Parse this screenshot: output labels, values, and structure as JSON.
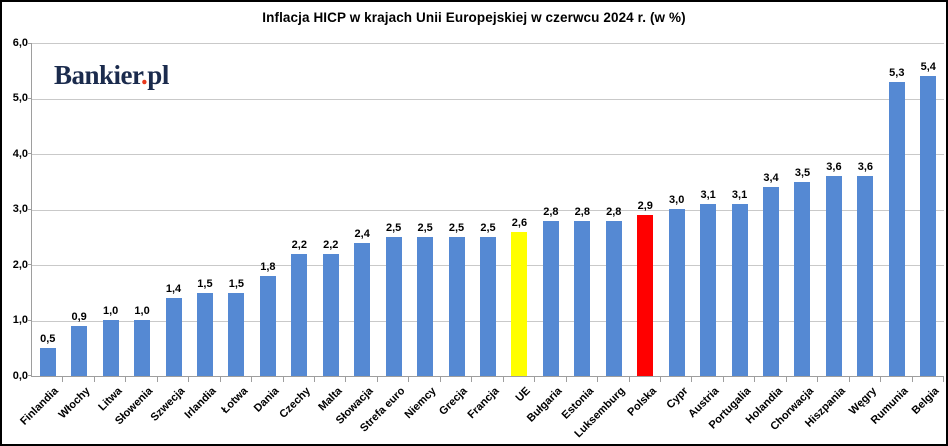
{
  "logo": {
    "main": "Bankier",
    "dot": ".",
    "suffix": "pl"
  },
  "chart_data": {
    "type": "bar",
    "title": "Inflacja HICP w krajach Unii Europejskiej w czerwcu 2024 r. (w %)",
    "categories": [
      "Finlandia",
      "Włochy",
      "Litwa",
      "Słowenia",
      "Szwecja",
      "Irlandia",
      "Łotwa",
      "Dania",
      "Czechy",
      "Malta",
      "Słowacja",
      "Strefa euro",
      "Niemcy",
      "Grecja",
      "Francja",
      "UE",
      "Bułgaria",
      "Estonia",
      "Luksemburg",
      "Polska",
      "Cypr",
      "Austria",
      "Portugalia",
      "Holandia",
      "Chorwacja",
      "Hiszpania",
      "Węgry",
      "Rumunia",
      "Belgia"
    ],
    "values": [
      0.5,
      0.9,
      1.0,
      1.0,
      1.4,
      1.5,
      1.5,
      1.8,
      2.2,
      2.2,
      2.4,
      2.5,
      2.5,
      2.5,
      2.5,
      2.6,
      2.8,
      2.8,
      2.8,
      2.9,
      3.0,
      3.1,
      3.1,
      3.4,
      3.5,
      3.6,
      3.6,
      5.3,
      5.4
    ],
    "value_labels": [
      "0,5",
      "0,9",
      "1,0",
      "1,0",
      "1,4",
      "1,5",
      "1,5",
      "1,8",
      "2,2",
      "2,2",
      "2,4",
      "2,5",
      "2,5",
      "2,5",
      "2,5",
      "2,6",
      "2,8",
      "2,8",
      "2,8",
      "2,9",
      "3,0",
      "3,1",
      "3,1",
      "3,4",
      "3,5",
      "3,6",
      "3,6",
      "5,3",
      "5,4"
    ],
    "bar_colors": {
      "default": "#5589d3",
      "highlights": {
        "UE": "#ffff00",
        "Polska": "#ff0000"
      }
    },
    "ylim": [
      0,
      6
    ],
    "ytick_step": 1,
    "ytick_labels": [
      "0,0",
      "1,0",
      "2,0",
      "3,0",
      "4,0",
      "5,0",
      "6,0"
    ],
    "grid": true,
    "xlabel": "",
    "ylabel": ""
  }
}
